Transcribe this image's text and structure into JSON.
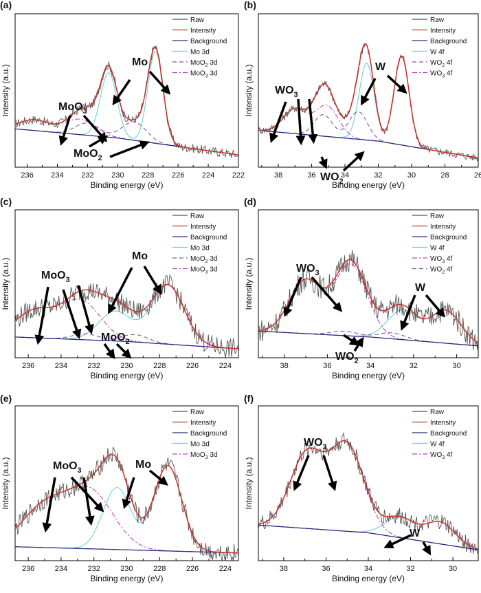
{
  "chart_data": [
    {
      "panel_label": "(a)",
      "type": "line",
      "xlabel": "Binding energy (eV)",
      "ylabel": "Intensity (a.u.)",
      "xlim": [
        236.8,
        222
      ],
      "xticks": [
        236,
        234,
        232,
        230,
        228,
        226,
        224,
        222
      ],
      "legend": [
        "Raw",
        "Intensity",
        "Background",
        "Mo 3d",
        "MoO<sub>2</sub> 3d",
        "MoO<sub>3</sub> 3d"
      ],
      "legend_labels": [
        "Raw",
        "Intensity",
        "Background",
        "Mo 3d",
        "MoO2 3d",
        "MoO3 3d"
      ],
      "annotations": [
        "MoO3",
        "Mo",
        "MoO2"
      ],
      "background": {
        "x": [
          236.8,
          230,
          222
        ],
        "y": [
          0.25,
          0.19,
          0.08
        ]
      },
      "peaks": {
        "Mo 3d": [
          {
            "x0": 227.5,
            "h": 0.6,
            "w": 0.5
          },
          {
            "x0": 230.6,
            "h": 0.42,
            "w": 0.55
          }
        ],
        "MoO2 3d": [
          {
            "x0": 228.9,
            "h": 0.12,
            "w": 0.8
          },
          {
            "x0": 232.0,
            "h": 0.08,
            "w": 0.8
          }
        ],
        "MoO3 3d": [
          {
            "x0": 232.5,
            "h": 0.1,
            "w": 1.0
          },
          {
            "x0": 235.5,
            "h": 0.07,
            "w": 1.0
          }
        ]
      },
      "noise": 0.03
    },
    {
      "panel_label": "(b)",
      "type": "line",
      "xlabel": "Binding energy (eV)",
      "ylabel": "Intensity (a.u.)",
      "xlim": [
        39.2,
        26
      ],
      "xticks": [
        38,
        36,
        34,
        32,
        30,
        28,
        26
      ],
      "legend": [
        "Raw",
        "Intensity",
        "Background",
        "W 4f",
        "WO<sub>2</sub> 4f",
        "WO<sub>3</sub> 4f"
      ],
      "legend_labels": [
        "Raw",
        "Intensity",
        "Background",
        "W 4f",
        "WO2 4f",
        "WO3 4f"
      ],
      "annotations": [
        "WO3",
        "W",
        "WO2"
      ],
      "background": {
        "x": [
          39.2,
          32,
          26
        ],
        "y": [
          0.24,
          0.17,
          0.06
        ]
      },
      "peaks": {
        "W 4f": [
          {
            "x0": 30.6,
            "h": 0.58,
            "w": 0.45
          },
          {
            "x0": 32.7,
            "h": 0.5,
            "w": 0.45
          }
        ],
        "WO2 4f": [
          {
            "x0": 33.2,
            "h": 0.18,
            "w": 0.55
          },
          {
            "x0": 35.3,
            "h": 0.14,
            "w": 0.55
          }
        ],
        "WO3 4f": [
          {
            "x0": 35.1,
            "h": 0.2,
            "w": 0.7
          },
          {
            "x0": 37.0,
            "h": 0.16,
            "w": 0.7
          }
        ]
      },
      "noise": 0.025
    },
    {
      "panel_label": "(c)",
      "type": "line",
      "xlabel": "Binding energy (eV)",
      "ylabel": "Intensity (a.u.)",
      "xlim": [
        236.8,
        223.2
      ],
      "xticks": [
        236,
        234,
        232,
        230,
        228,
        226,
        224
      ],
      "legend": [
        "Raw",
        "Intensity",
        "Background",
        "Mo 3d",
        "MoO<sub>2</sub> 3d",
        "MoO<sub>3</sub> 3d"
      ],
      "legend_labels": [
        "Raw",
        "Intensity",
        "Background",
        "Mo 3d",
        "MoO2 3d",
        "MoO3 3d"
      ],
      "annotations": [
        "MoO3",
        "Mo",
        "MoO2"
      ],
      "background": {
        "x": [
          236.8,
          230,
          223.2
        ],
        "y": [
          0.14,
          0.11,
          0.06
        ]
      },
      "peaks": {
        "Mo 3d": [
          {
            "x0": 227.5,
            "h": 0.4,
            "w": 1.0
          },
          {
            "x0": 230.7,
            "h": 0.2,
            "w": 1.0
          }
        ],
        "MoO2 3d": [
          {
            "x0": 229.5,
            "h": 0.05,
            "w": 0.8
          },
          {
            "x0": 232.5,
            "h": 0.04,
            "w": 0.8
          }
        ],
        "MoO3 3d": [
          {
            "x0": 232.8,
            "h": 0.26,
            "w": 1.2
          },
          {
            "x0": 235.6,
            "h": 0.18,
            "w": 1.2
          }
        ]
      },
      "noise": 0.07
    },
    {
      "panel_label": "(d)",
      "type": "line",
      "xlabel": "Binding energy (eV)",
      "ylabel": "Intensity (a.u.)",
      "xlim": [
        39.2,
        29
      ],
      "xticks": [
        38,
        36,
        34,
        32,
        30
      ],
      "legend": [
        "Raw",
        "Intensity",
        "Background",
        "W 4f",
        "WO<sub>3</sub> 4f",
        "WO<sub>2</sub> 4f"
      ],
      "legend_labels": [
        "Raw",
        "Intensity",
        "Background",
        "W 4f",
        "WO3 4f",
        "WO2 4f"
      ],
      "annotations": [
        "WO3",
        "W",
        "WO2"
      ],
      "background": {
        "x": [
          39.2,
          34,
          29
        ],
        "y": [
          0.18,
          0.14,
          0.08
        ]
      },
      "peaks": {
        "W 4f": [
          {
            "x0": 30.5,
            "h": 0.22,
            "w": 0.7
          },
          {
            "x0": 32.5,
            "h": 0.2,
            "w": 0.7
          }
        ],
        "WO2 4f": [
          {
            "x0": 33.0,
            "h": 0.04,
            "w": 0.6
          },
          {
            "x0": 35.2,
            "h": 0.03,
            "w": 0.6
          }
        ],
        "WO3 4f": [
          {
            "x0": 34.9,
            "h": 0.48,
            "w": 0.75
          },
          {
            "x0": 37.0,
            "h": 0.36,
            "w": 0.75
          }
        ]
      },
      "noise": 0.08
    },
    {
      "panel_label": "(e)",
      "type": "line",
      "xlabel": "Binding energy (eV)",
      "ylabel": "Intensity (a.u.)",
      "xlim": [
        236.8,
        223.2
      ],
      "xticks": [
        236,
        234,
        232,
        230,
        228,
        226,
        224
      ],
      "legend": [
        "Raw",
        "Intensity",
        "Background",
        "Mo 3d",
        "MoO<sub>3</sub> 3d"
      ],
      "legend_labels": [
        "Raw",
        "Intensity",
        "Background",
        "Mo 3d",
        "MoO3 3d"
      ],
      "annotations": [
        "MoO3",
        "Mo"
      ],
      "background": {
        "x": [
          236.8,
          230,
          223.2
        ],
        "y": [
          0.09,
          0.07,
          0.05
        ]
      },
      "peaks": {
        "Mo 3d": [
          {
            "x0": 227.5,
            "h": 0.55,
            "w": 0.85
          },
          {
            "x0": 230.6,
            "h": 0.4,
            "w": 0.85
          }
        ],
        "MoO3 3d": [
          {
            "x0": 232.2,
            "h": 0.36,
            "w": 1.4
          },
          {
            "x0": 235.0,
            "h": 0.26,
            "w": 1.4
          }
        ]
      },
      "noise": 0.06
    },
    {
      "panel_label": "(f)",
      "type": "line",
      "xlabel": "Binding energy (eV)",
      "ylabel": "Intensity (a.u.)",
      "xlim": [
        39.2,
        28.8
      ],
      "xticks": [
        38,
        36,
        34,
        32,
        30
      ],
      "legend": [
        "Raw",
        "Intensity",
        "Background",
        "W 4f",
        "WO<sub>3</sub> 4f"
      ],
      "legend_labels": [
        "Raw",
        "Intensity",
        "Background",
        "W 4f",
        "WO3 4f"
      ],
      "annotations": [
        "WO3",
        "W"
      ],
      "background": {
        "x": [
          39.2,
          34,
          28.8
        ],
        "y": [
          0.23,
          0.18,
          0.07
        ]
      },
      "peaks": {
        "W 4f": [
          {
            "x0": 30.6,
            "h": 0.14,
            "w": 0.7
          },
          {
            "x0": 32.5,
            "h": 0.13,
            "w": 0.7
          }
        ],
        "WO3 4f": [
          {
            "x0": 35.0,
            "h": 0.55,
            "w": 0.8
          },
          {
            "x0": 36.9,
            "h": 0.48,
            "w": 0.8
          }
        ]
      },
      "noise": 0.055
    }
  ],
  "colors": {
    "raw": "#555555",
    "intensity": "#d0302a",
    "background": "#2a2a80",
    "metal": "#6cd3d0",
    "oxide_a": "#7b5aa6",
    "oxide_b": "#c040c0"
  }
}
